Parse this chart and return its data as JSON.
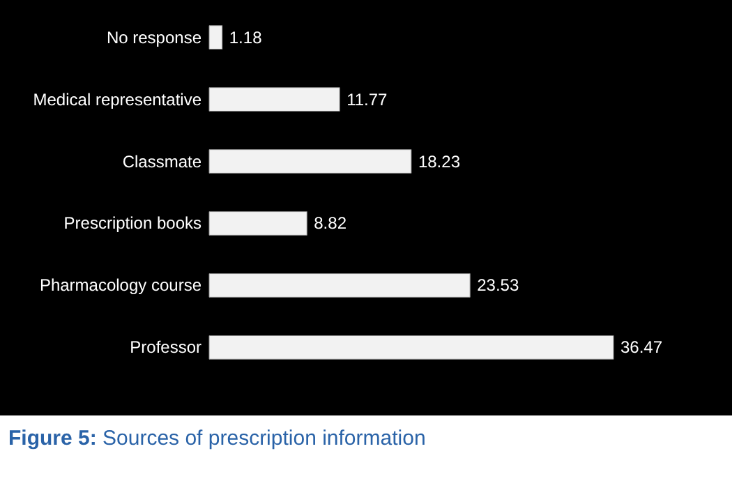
{
  "chart_data": {
    "type": "bar",
    "orientation": "horizontal",
    "categories": [
      "No response",
      "Medical representative",
      "Classmate",
      "Prescription books",
      "Pharmacology course",
      "Professor"
    ],
    "values": [
      1.18,
      11.77,
      18.23,
      8.82,
      23.53,
      36.47
    ],
    "color": "#f2f2f2",
    "data_labels": true,
    "annotations": [
      "Figure 5: Sources of prescription information"
    ]
  }
}
